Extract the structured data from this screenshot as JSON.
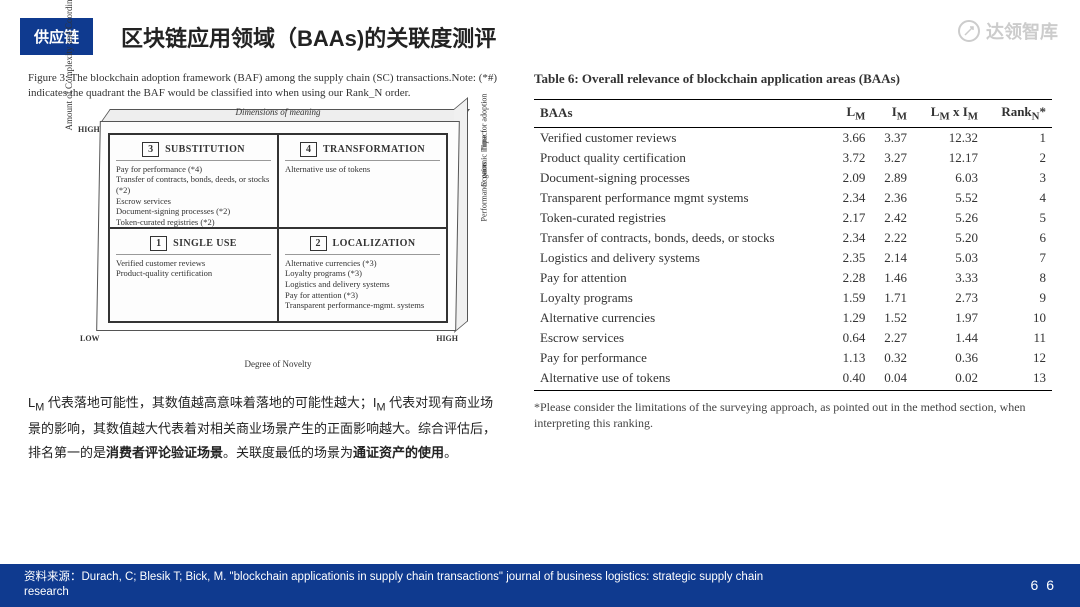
{
  "header": {
    "tag": "供应链",
    "title": "区块链应用领域（BAAs)的关联度测评",
    "watermark": "达领智库"
  },
  "figure": {
    "caption": "Figure 3: The blockchain adoption framework (BAF) among the supply chain (SC) transactions.Note: (*#) indicates the quadrant the BAF would be classified into when using our Rank_N order.",
    "dim_label": "Dimensions of meaning",
    "axis_v": "Amount of Complexity and Coordination",
    "axis_h": "Degree of Novelty",
    "low": "LOW",
    "high": "HIGH",
    "side": [
      "Time for adoption",
      "Economic impact",
      "Performance gains"
    ],
    "q3": {
      "num": "3",
      "title": "SUBSTITUTION",
      "items": [
        "Pay for performance (*4)",
        "Transfer of contracts, bonds, deeds, or stocks (*2)",
        "Escrow services",
        "Document-signing processes (*2)",
        "Token-curated registries (*2)"
      ]
    },
    "q4": {
      "num": "4",
      "title": "TRANSFORMATION",
      "items": [
        "Alternative use of tokens"
      ]
    },
    "q1": {
      "num": "1",
      "title": "SINGLE USE",
      "items": [
        "Verified customer reviews",
        "Product-quality certification"
      ]
    },
    "q2": {
      "num": "2",
      "title": "LOCALIZATION",
      "items": [
        "Alternative currencies (*3)",
        "Loyalty programs (*3)",
        "Logistics and delivery systems",
        "Pay for attention (*3)",
        "Transparent performance-mgmt. systems"
      ]
    }
  },
  "explain": {
    "pre": "L",
    "lm_sub": "M",
    "seg1": " 代表落地可能性，其数值越高意味着落地的可能性越大；I",
    "im_sub": "M",
    "seg2": " 代表对现有商业场景的影响，其数值越大代表着对相关商业场景产生的正面影响越大。综合评估后，排名第一的是",
    "bold1": "消费者评论验证场景",
    "seg3": "。关联度最低的场景为",
    "bold2": "通证资产的使用",
    "seg4": "。"
  },
  "table": {
    "title": "Table 6:  Overall relevance of blockchain application areas (BAAs)",
    "columns": [
      "BAAs",
      "L_M",
      "I_M",
      "L_M x I_M",
      "Rank_N*"
    ],
    "rows": [
      [
        "Verified customer reviews",
        "3.66",
        "3.37",
        "12.32",
        "1"
      ],
      [
        "Product quality certification",
        "3.72",
        "3.27",
        "12.17",
        "2"
      ],
      [
        "Document-signing processes",
        "2.09",
        "2.89",
        "6.03",
        "3"
      ],
      [
        "Transparent performance mgmt systems",
        "2.34",
        "2.36",
        "5.52",
        "4"
      ],
      [
        "Token-curated registries",
        "2.17",
        "2.42",
        "5.26",
        "5"
      ],
      [
        "Transfer of contracts, bonds, deeds, or stocks",
        "2.34",
        "2.22",
        "5.20",
        "6"
      ],
      [
        "Logistics and delivery systems",
        "2.35",
        "2.14",
        "5.03",
        "7"
      ],
      [
        "Pay for attention",
        "2.28",
        "1.46",
        "3.33",
        "8"
      ],
      [
        "Loyalty programs",
        "1.59",
        "1.71",
        "2.73",
        "9"
      ],
      [
        "Alternative currencies",
        "1.29",
        "1.52",
        "1.97",
        "10"
      ],
      [
        "Escrow services",
        "0.64",
        "2.27",
        "1.44",
        "11"
      ],
      [
        "Pay for performance",
        "1.13",
        "0.32",
        "0.36",
        "12"
      ],
      [
        "Alternative use of tokens",
        "0.40",
        "0.04",
        "0.02",
        "13"
      ]
    ],
    "footnote": "*Please consider the limitations of the surveying approach, as pointed out in the method section, when interpreting this ranking."
  },
  "footer": {
    "source": "资料来源：Durach, C; Blesik T; Bick, M. \"blockchain applicationis in supply chain transactions\" journal of business logistics: strategic supply chain research",
    "page": "6 6"
  },
  "colors": {
    "brand": "#0f3a8f",
    "text": "#333",
    "bg": "#ffffff"
  }
}
